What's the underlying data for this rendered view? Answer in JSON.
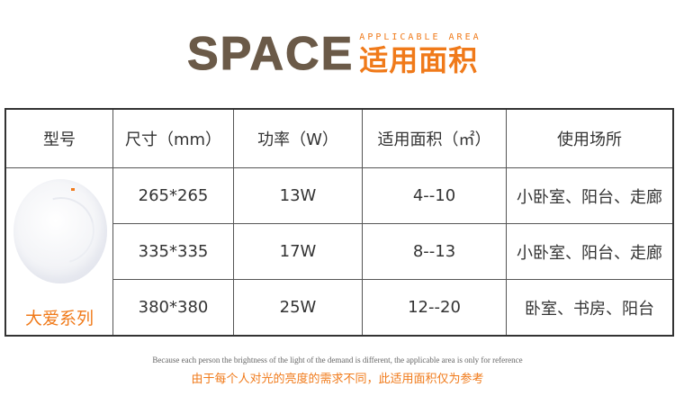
{
  "header": {
    "title_en": "SPACE",
    "subtitle_en": "APPLICABLE AREA",
    "title_cn": "适用面积"
  },
  "table": {
    "columns": [
      "型号",
      "尺寸（mm）",
      "功率（W）",
      "适用面积（㎡）",
      "使用场所"
    ],
    "model": "大爱系列",
    "rows": [
      {
        "size": "265*265",
        "power": "13W",
        "area": "4--10",
        "place": "小卧室、阳台、走廊"
      },
      {
        "size": "335*335",
        "power": "17W",
        "area": "8--13",
        "place": "小卧室、阳台、走廊"
      },
      {
        "size": "380*380",
        "power": "25W",
        "area": "12--20",
        "place": "卧室、书房、阳台"
      }
    ]
  },
  "notes": {
    "en": "Because each person the brightness of the light of the demand is different, the applicable area is only for reference",
    "cn": "由于每个人对光的亮度的需求不同，此适用面积仅为参考"
  },
  "colors": {
    "accent": "#f07a1a",
    "brown": "#6b5a48"
  }
}
